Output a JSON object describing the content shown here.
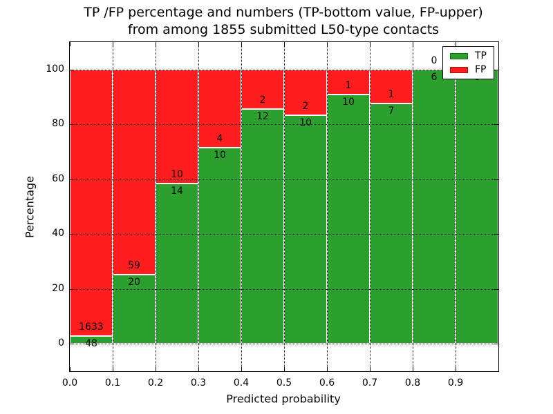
{
  "chart_data": {
    "type": "bar",
    "stacked": true,
    "title_line1": "TP /FP percentage and numbers (TP-bottom value, FP-upper)",
    "title_line2": "from among 1855 submitted L50-type contacts",
    "xlabel": "Predicted probability",
    "ylabel": "Percentage",
    "bin_width": 0.1,
    "categories": [
      0.0,
      0.1,
      0.2,
      0.3,
      0.4,
      0.5,
      0.6,
      0.7,
      0.8,
      0.9
    ],
    "x_tick_labels": [
      "0.0",
      "0.1",
      "0.2",
      "0.3",
      "0.4",
      "0.5",
      "0.6",
      "0.7",
      "0.8",
      "0.9"
    ],
    "y_tick_values": [
      0,
      20,
      40,
      60,
      80,
      100
    ],
    "y_tick_labels": [
      "0",
      "20",
      "40",
      "60",
      "80",
      "100"
    ],
    "xlim": [
      0.0,
      1.0
    ],
    "ylim": [
      -10,
      110
    ],
    "grid": true,
    "series": [
      {
        "name": "TP",
        "color": "#2ca02c",
        "counts": [
          48,
          20,
          14,
          10,
          12,
          10,
          10,
          7,
          6,
          6
        ]
      },
      {
        "name": "FP",
        "color": "#ff1e1e",
        "counts": [
          1633,
          59,
          10,
          4,
          2,
          2,
          1,
          1,
          0,
          0
        ]
      }
    ],
    "percent_tp": [
      2.86,
      25.32,
      58.33,
      71.43,
      85.71,
      83.33,
      90.91,
      87.5,
      100.0,
      100.0
    ],
    "legend": {
      "position": "upper right",
      "entries": [
        {
          "label": "TP",
          "color": "#2ca02c"
        },
        {
          "label": "FP",
          "color": "#ff1e1e"
        }
      ]
    }
  }
}
